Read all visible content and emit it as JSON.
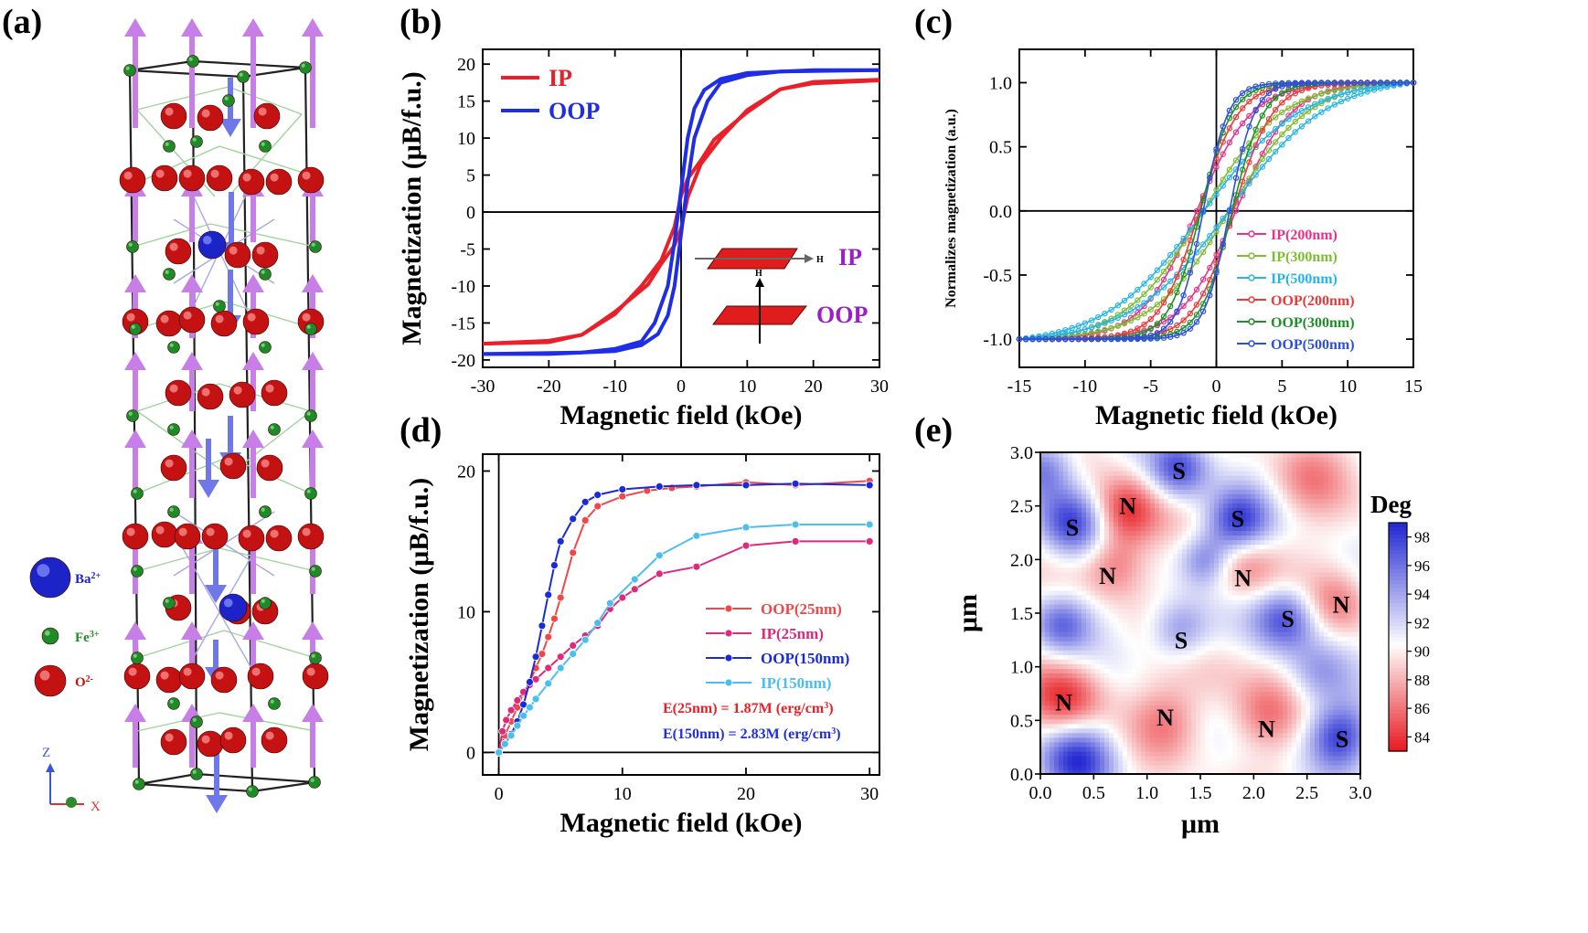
{
  "colors": {
    "ip": "#e8202a",
    "oop": "#1f2ee6",
    "purple": "#9b1fc9",
    "c_ip200": "#e5338b",
    "c_ip300": "#7fbc35",
    "c_ip500": "#28b4e6",
    "c_oop200": "#ec3a3a",
    "c_oop300": "#1f8f2a",
    "c_oop500": "#2d4fe0",
    "d_oop25": "#f04848",
    "d_ip25": "#e0287c",
    "d_oop150": "#1a2ad8",
    "d_ip150": "#4cbdf0"
  },
  "panel_a": {
    "label": "(a)",
    "legend": [
      "Ba",
      "Fe",
      "O"
    ],
    "legend_sup": [
      "2+",
      "3+",
      "2-"
    ],
    "axes": {
      "z": "Z",
      "x": "X"
    }
  },
  "chart_data": [
    {
      "id": "b",
      "panel_label": "(b)",
      "type": "line",
      "xlabel": "Magnetic field (kOe)",
      "ylabel": "Magnetization (μB/f.u.)",
      "xlim": [
        -30,
        30
      ],
      "ylim": [
        -21,
        22
      ],
      "xticks": [
        -30,
        -20,
        -10,
        0,
        10,
        20,
        30
      ],
      "yticks": [
        -20,
        -15,
        -10,
        -5,
        0,
        5,
        10,
        15,
        20
      ],
      "series": [
        {
          "name": "IP",
          "color_key": "ip",
          "upper": [
            [
              -30,
              -17.8
            ],
            [
              -20,
              -17.4
            ],
            [
              -15,
              -16.6
            ],
            [
              -10,
              -13.8
            ],
            [
              -6,
              -10
            ],
            [
              -3,
              -6.5
            ],
            [
              -1,
              -2
            ],
            [
              0,
              2.2
            ],
            [
              1,
              4.5
            ],
            [
              3,
              7
            ],
            [
              5,
              9.8
            ],
            [
              10,
              13.5
            ],
            [
              15,
              16.6
            ],
            [
              20,
              17.6
            ],
            [
              30,
              17.9
            ]
          ],
          "lower": [
            [
              -30,
              -17.8
            ],
            [
              -20,
              -17.6
            ],
            [
              -15,
              -16.6
            ],
            [
              -10,
              -13.5
            ],
            [
              -5,
              -9.8
            ],
            [
              -3,
              -7
            ],
            [
              -1,
              -4.5
            ],
            [
              0,
              -2.2
            ],
            [
              1,
              2
            ],
            [
              3,
              6.5
            ],
            [
              6,
              10
            ],
            [
              10,
              13.8
            ],
            [
              15,
              16.6
            ],
            [
              20,
              17.4
            ],
            [
              30,
              17.8
            ]
          ]
        },
        {
          "name": "OOP",
          "color_key": "oop",
          "upper": [
            [
              -30,
              -19.2
            ],
            [
              -15,
              -19
            ],
            [
              -10,
              -18.5
            ],
            [
              -6,
              -17.5
            ],
            [
              -4,
              -15
            ],
            [
              -2,
              -10
            ],
            [
              -1,
              -4
            ],
            [
              0,
              3
            ],
            [
              1,
              10
            ],
            [
              2,
              14
            ],
            [
              3.5,
              16.5
            ],
            [
              6,
              18
            ],
            [
              10,
              18.8
            ],
            [
              20,
              19.2
            ],
            [
              30,
              19.2
            ]
          ],
          "lower": [
            [
              -30,
              -19.2
            ],
            [
              -20,
              -19.2
            ],
            [
              -10,
              -18.8
            ],
            [
              -6,
              -18
            ],
            [
              -3.5,
              -16.5
            ],
            [
              -2,
              -14
            ],
            [
              -1,
              -10
            ],
            [
              0,
              -3
            ],
            [
              1,
              4
            ],
            [
              2,
              10
            ],
            [
              4,
              15
            ],
            [
              6,
              17.5
            ],
            [
              10,
              18.5
            ],
            [
              15,
              19
            ],
            [
              30,
              19.2
            ]
          ]
        }
      ],
      "legend": [
        "IP",
        "OOP"
      ],
      "inset": {
        "h": "H",
        "ip": "IP",
        "oop": "OOP"
      }
    },
    {
      "id": "c",
      "panel_label": "(c)",
      "type": "line",
      "xlabel": "Magnetic field (kOe)",
      "ylabel": "Normalizes magnetization (a.u.)",
      "xlim": [
        -15,
        15
      ],
      "ylim": [
        -1.22,
        1.26
      ],
      "xticks": [
        -15,
        -10,
        -5,
        0,
        5,
        10,
        15
      ],
      "yticks": [
        -1.0,
        -0.5,
        0.0,
        0.5,
        1.0
      ],
      "yticklabels": [
        "-1.0",
        "-0.5",
        "0.0",
        "0.5",
        "1.0"
      ],
      "series": [
        {
          "name": "IP(200nm)",
          "color_key": "c_ip200",
          "hc": 1.5,
          "w": 4.2,
          "s": 0.75
        },
        {
          "name": "IP(300nm)",
          "color_key": "c_ip300",
          "hc": 1.0,
          "w": 6.0,
          "s": 0.45
        },
        {
          "name": "IP(500nm)",
          "color_key": "c_ip500",
          "hc": 1.0,
          "w": 7.5,
          "s": 0.45
        },
        {
          "name": "OOP(200nm)",
          "color_key": "c_oop200",
          "hc": 1.3,
          "w": 3.0,
          "s": 0.75
        },
        {
          "name": "OOP(300nm)",
          "color_key": "c_oop300",
          "hc": 1.2,
          "w": 2.4,
          "s": 0.8
        },
        {
          "name": "OOP(500nm)",
          "color_key": "c_oop500",
          "hc": 1.0,
          "w": 1.9,
          "s": 0.8
        }
      ]
    },
    {
      "id": "d",
      "panel_label": "(d)",
      "type": "line",
      "xlabel": "Magnetic field (kOe)",
      "ylabel": "Magnetization (μB/f.u.)",
      "xlim": [
        -1.3,
        30.8
      ],
      "ylim": [
        -1.6,
        21.2
      ],
      "xticks": [
        0,
        10,
        20,
        30
      ],
      "yticks": [
        0,
        10,
        20
      ],
      "series": [
        {
          "name": "OOP(25nm)",
          "color_key": "d_oop25",
          "points": [
            [
              0,
              0
            ],
            [
              0.5,
              1.2
            ],
            [
              1,
              2.2
            ],
            [
              1.5,
              3.2
            ],
            [
              2,
              4.2
            ],
            [
              2.5,
              5
            ],
            [
              3,
              6
            ],
            [
              3.5,
              7
            ],
            [
              4,
              8.2
            ],
            [
              4.5,
              9.5
            ],
            [
              5,
              11
            ],
            [
              6,
              14.2
            ],
            [
              7,
              16.5
            ],
            [
              8,
              17.5
            ],
            [
              10,
              18.2
            ],
            [
              12,
              18.6
            ],
            [
              14,
              18.8
            ],
            [
              16,
              18.9
            ],
            [
              20,
              19.2
            ],
            [
              24,
              19
            ],
            [
              30,
              19.3
            ]
          ]
        },
        {
          "name": "IP(25nm)",
          "color_key": "d_ip25",
          "points": [
            [
              0,
              0
            ],
            [
              0.3,
              1.5
            ],
            [
              0.6,
              2.3
            ],
            [
              1,
              3
            ],
            [
              1.5,
              3.7
            ],
            [
              2,
              4.3
            ],
            [
              2.5,
              4.8
            ],
            [
              3,
              5.2
            ],
            [
              4,
              6
            ],
            [
              5,
              6.8
            ],
            [
              6,
              7.6
            ],
            [
              7,
              8.3
            ],
            [
              8,
              9
            ],
            [
              9,
              10.2
            ],
            [
              10,
              11
            ],
            [
              11,
              11.6
            ],
            [
              13,
              12.7
            ],
            [
              16,
              13.2
            ],
            [
              20,
              14.7
            ],
            [
              24,
              15
            ],
            [
              30,
              15
            ]
          ]
        },
        {
          "name": "OOP(150nm)",
          "color_key": "d_oop150",
          "points": [
            [
              0,
              0
            ],
            [
              0.5,
              0.6
            ],
            [
              1,
              1.3
            ],
            [
              1.5,
              2.2
            ],
            [
              2,
              3.4
            ],
            [
              2.5,
              5
            ],
            [
              3,
              6.8
            ],
            [
              3.5,
              9
            ],
            [
              4,
              11.2
            ],
            [
              4.5,
              13.3
            ],
            [
              5,
              15
            ],
            [
              6,
              16.6
            ],
            [
              7,
              17.8
            ],
            [
              8,
              18.3
            ],
            [
              10,
              18.7
            ],
            [
              13,
              18.9
            ],
            [
              16,
              19
            ],
            [
              20,
              19
            ],
            [
              24,
              19.1
            ],
            [
              30,
              19
            ]
          ]
        },
        {
          "name": "IP(150nm)",
          "color_key": "d_ip150",
          "points": [
            [
              0,
              0
            ],
            [
              0.5,
              0.6
            ],
            [
              1,
              1.2
            ],
            [
              1.5,
              1.9
            ],
            [
              2,
              2.6
            ],
            [
              2.5,
              3.2
            ],
            [
              3,
              3.8
            ],
            [
              4,
              4.9
            ],
            [
              5,
              6
            ],
            [
              6,
              7
            ],
            [
              7,
              8
            ],
            [
              8,
              9.2
            ],
            [
              9,
              10.6
            ],
            [
              11,
              12.3
            ],
            [
              13,
              14
            ],
            [
              16,
              15.4
            ],
            [
              20,
              16
            ],
            [
              24,
              16.2
            ],
            [
              30,
              16.2
            ]
          ]
        }
      ],
      "annotations": [
        {
          "base": "E(25nm) = 1.87M (erg/cm",
          "sup": "3",
          "end": ")",
          "color_key": "ip"
        },
        {
          "base": "E(150nm) = 2.83M (erg/cm",
          "sup": "3",
          "end": ")",
          "color_key": "oop"
        }
      ]
    },
    {
      "id": "e",
      "panel_label": "(e)",
      "type": "heatmap",
      "xlabel": "μm",
      "ylabel": "μm",
      "xlim": [
        0,
        3.0
      ],
      "ylim": [
        0,
        3.0
      ],
      "xticks": [
        0,
        0.5,
        1.0,
        1.5,
        2.0,
        2.5,
        3.0
      ],
      "xticklabels": [
        "0.0",
        "0.5",
        "1.0",
        "1.5",
        "2.0",
        "2.5",
        "3.0"
      ],
      "yticks": [
        0,
        0.5,
        1.0,
        1.5,
        2.0,
        2.5,
        3.0
      ],
      "yticklabels": [
        "0.0",
        "0.5",
        "1.0",
        "1.5",
        "2.0",
        "2.5",
        "3.0"
      ],
      "colorbar": {
        "title": "Deg",
        "min": 83,
        "max": 99,
        "ticks": [
          84,
          86,
          88,
          90,
          92,
          94,
          96,
          98
        ],
        "ticklabels": [
          "84",
          "86",
          "88",
          "90",
          "92",
          "94",
          "96",
          "98"
        ]
      },
      "blobs": [
        {
          "x": 0.3,
          "y": 2.35,
          "v": 98.5,
          "r": 0.32
        },
        {
          "x": 1.3,
          "y": 2.85,
          "v": 97.5,
          "r": 0.28
        },
        {
          "x": 1.85,
          "y": 2.35,
          "v": 98.5,
          "r": 0.3
        },
        {
          "x": 0.8,
          "y": 2.45,
          "v": 83.5,
          "r": 0.32
        },
        {
          "x": 0.7,
          "y": 1.95,
          "v": 86,
          "r": 0.3
        },
        {
          "x": 1.9,
          "y": 1.95,
          "v": 86,
          "r": 0.33
        },
        {
          "x": 2.8,
          "y": 1.6,
          "v": 87,
          "r": 0.3
        },
        {
          "x": 2.3,
          "y": 1.45,
          "v": 97.5,
          "r": 0.3
        },
        {
          "x": 1.3,
          "y": 1.35,
          "v": 95.5,
          "r": 0.28
        },
        {
          "x": 0.25,
          "y": 0.7,
          "v": 84,
          "r": 0.35
        },
        {
          "x": 0.35,
          "y": 0.15,
          "v": 98,
          "r": 0.35
        },
        {
          "x": 1.2,
          "y": 0.5,
          "v": 87,
          "r": 0.33
        },
        {
          "x": 2.1,
          "y": 0.55,
          "v": 87,
          "r": 0.33
        },
        {
          "x": 2.8,
          "y": 0.35,
          "v": 98,
          "r": 0.3
        },
        {
          "x": 2.5,
          "y": 2.75,
          "v": 87.5,
          "r": 0.35
        },
        {
          "x": 1.55,
          "y": 2.0,
          "v": 96,
          "r": 0.25
        },
        {
          "x": 0.2,
          "y": 1.4,
          "v": 96.5,
          "r": 0.28
        },
        {
          "x": 0.05,
          "y": 2.85,
          "v": 96,
          "r": 0.28
        },
        {
          "x": 2.6,
          "y": 0.95,
          "v": 94,
          "r": 0.3
        },
        {
          "x": 1.6,
          "y": 0.9,
          "v": 89,
          "r": 0.35
        }
      ],
      "labels": [
        {
          "text": "S",
          "x": 1.3,
          "y": 2.83
        },
        {
          "text": "N",
          "x": 0.82,
          "y": 2.5
        },
        {
          "text": "S",
          "x": 1.85,
          "y": 2.38
        },
        {
          "text": "S",
          "x": 0.3,
          "y": 2.3
        },
        {
          "text": "N",
          "x": 0.63,
          "y": 1.85
        },
        {
          "text": "N",
          "x": 1.9,
          "y": 1.83
        },
        {
          "text": "N",
          "x": 2.82,
          "y": 1.58
        },
        {
          "text": "S",
          "x": 2.32,
          "y": 1.45
        },
        {
          "text": "S",
          "x": 1.32,
          "y": 1.25
        },
        {
          "text": "N",
          "x": 0.22,
          "y": 0.67
        },
        {
          "text": "N",
          "x": 1.17,
          "y": 0.53
        },
        {
          "text": "N",
          "x": 2.12,
          "y": 0.42
        },
        {
          "text": "S",
          "x": 2.83,
          "y": 0.33
        }
      ]
    }
  ]
}
